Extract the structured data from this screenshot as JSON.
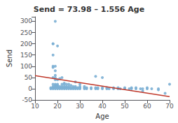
{
  "chart_data": {
    "type": "scatter",
    "title": "Send = 73.98 – 1.556 Age",
    "xlabel": "Age",
    "ylabel": "Send",
    "xlim": [
      10,
      70
    ],
    "ylim": [
      -50,
      320
    ],
    "xticks": [
      10,
      20,
      30,
      40,
      50,
      60,
      70
    ],
    "yticks": [
      -50,
      0,
      50,
      100,
      150,
      200,
      250,
      300
    ],
    "grid": false,
    "series": [
      {
        "type": "scatter",
        "color": "#7bafd4",
        "x": [
          17,
          17,
          18,
          18,
          18,
          18,
          18,
          18,
          18,
          18,
          18,
          18,
          19,
          19,
          19,
          19,
          19,
          19,
          19,
          19,
          19,
          19,
          19,
          20,
          20,
          20,
          20,
          20,
          20,
          20,
          21,
          21,
          21,
          21,
          22,
          22,
          22,
          22,
          22,
          23,
          23,
          23,
          23,
          23,
          24,
          24,
          24,
          24,
          25,
          25,
          25,
          25,
          26,
          26,
          26,
          27,
          27,
          27,
          28,
          28,
          28,
          28,
          29,
          29,
          30,
          30,
          30,
          30,
          32,
          32,
          32,
          33,
          33,
          35,
          35,
          37,
          37,
          37,
          38,
          38,
          40,
          40,
          40,
          42,
          42,
          43,
          45,
          45,
          47,
          47,
          48,
          50,
          50,
          52,
          53,
          53,
          55,
          55,
          57,
          58,
          58,
          60,
          60,
          62,
          65,
          65,
          68,
          70
        ],
        "values": [
          0,
          5,
          0,
          5,
          10,
          20,
          50,
          95,
          100,
          150,
          200,
          200,
          0,
          5,
          10,
          15,
          20,
          40,
          50,
          60,
          80,
          100,
          300,
          0,
          5,
          10,
          15,
          20,
          40,
          190,
          0,
          5,
          10,
          45,
          0,
          5,
          10,
          20,
          50,
          0,
          5,
          10,
          20,
          25,
          0,
          5,
          10,
          20,
          0,
          5,
          10,
          20,
          0,
          5,
          15,
          0,
          5,
          10,
          0,
          5,
          10,
          30,
          0,
          5,
          0,
          5,
          10,
          20,
          0,
          5,
          10,
          0,
          5,
          0,
          5,
          0,
          5,
          55,
          0,
          5,
          0,
          5,
          50,
          0,
          5,
          0,
          0,
          5,
          0,
          5,
          0,
          0,
          5,
          0,
          0,
          5,
          0,
          5,
          0,
          0,
          -10,
          0,
          5,
          0,
          0,
          -5,
          -20,
          20
        ]
      },
      {
        "type": "line",
        "color": "#c0392b",
        "x": [
          10,
          70
        ],
        "values": [
          58.42,
          -34.94
        ]
      }
    ]
  }
}
